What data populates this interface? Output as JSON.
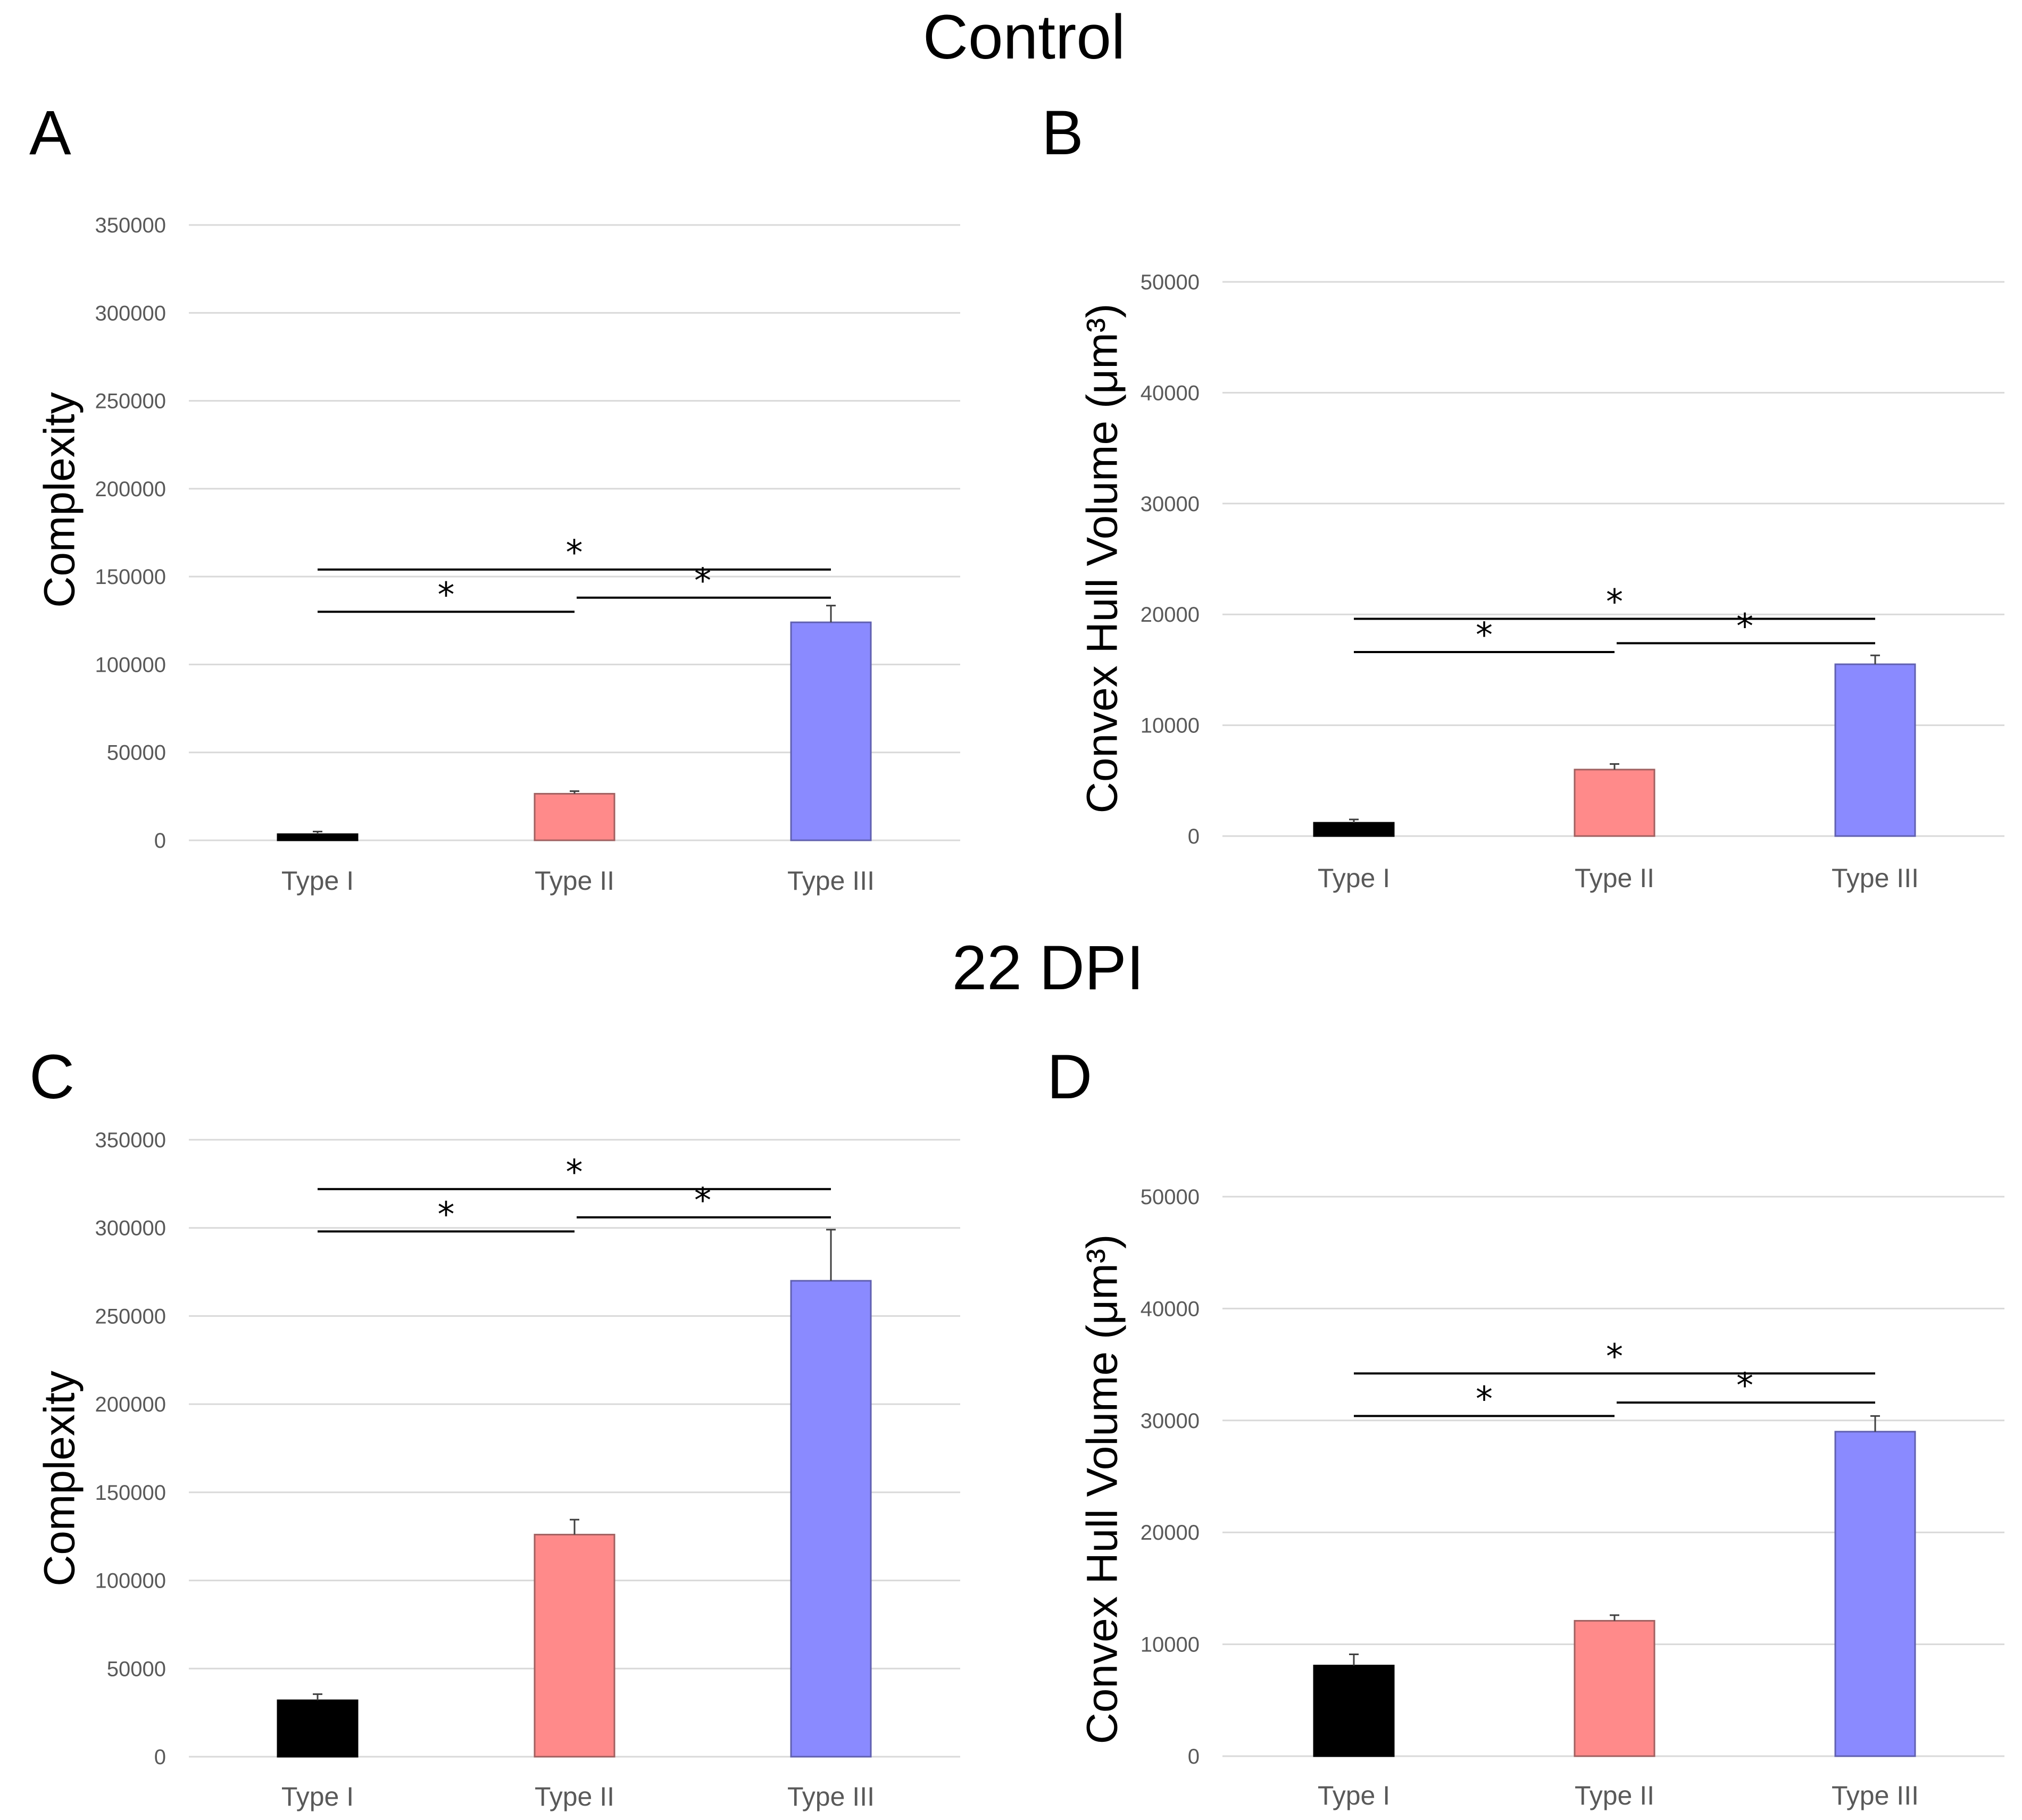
{
  "headings": {
    "top": "Control",
    "bottom": "22 DPI"
  },
  "colors": {
    "type_i": "#000000",
    "type_ii": "#ff8a8a",
    "type_iii": "#8a8aff",
    "grid": "#d9d9d9",
    "axis_text": "#595959"
  },
  "chart_data": [
    {
      "panel": "A",
      "type": "bar",
      "title": "",
      "xlabel": "",
      "ylabel": "Complexity",
      "categories": [
        "Type I",
        "Type II",
        "Type III"
      ],
      "values": [
        3500,
        26500,
        124000
      ],
      "errors": [
        1500,
        1500,
        9500
      ],
      "ylim": [
        0,
        350000
      ],
      "yticks": [
        0,
        50000,
        100000,
        150000,
        200000,
        250000,
        300000,
        350000
      ],
      "ytick_labels": [
        "0",
        "50000",
        "100000",
        "150000",
        "200000",
        "250000",
        "300000",
        "350000"
      ],
      "grid": true,
      "significance": [
        {
          "from": 0,
          "to": 2,
          "y": 154000,
          "label": "*"
        },
        {
          "from": 0,
          "to": 1,
          "y": 130000,
          "label": "*"
        },
        {
          "from": 1,
          "to": 2,
          "y": 138000,
          "label": "*"
        }
      ]
    },
    {
      "panel": "B",
      "type": "bar",
      "title": "",
      "xlabel": "",
      "ylabel": "Convex Hull Volume (μm³)",
      "categories": [
        "Type I",
        "Type II",
        "Type III"
      ],
      "values": [
        1200,
        6000,
        15500
      ],
      "errors": [
        300,
        500,
        800
      ],
      "ylim": [
        0,
        50000
      ],
      "yticks": [
        0,
        10000,
        20000,
        30000,
        40000,
        50000
      ],
      "ytick_labels": [
        "0",
        "10000",
        "20000",
        "30000",
        "40000",
        "50000"
      ],
      "grid": true,
      "significance": [
        {
          "from": 0,
          "to": 2,
          "y": 19600,
          "label": "*"
        },
        {
          "from": 0,
          "to": 1,
          "y": 16600,
          "label": "*"
        },
        {
          "from": 1,
          "to": 2,
          "y": 17400,
          "label": "*"
        }
      ]
    },
    {
      "panel": "C",
      "type": "bar",
      "title": "",
      "xlabel": "",
      "ylabel": "Complexity",
      "categories": [
        "Type I",
        "Type II",
        "Type III"
      ],
      "values": [
        32000,
        126000,
        270000
      ],
      "errors": [
        3500,
        8500,
        29000
      ],
      "ylim": [
        0,
        350000
      ],
      "yticks": [
        0,
        50000,
        100000,
        150000,
        200000,
        250000,
        300000,
        350000
      ],
      "ytick_labels": [
        "0",
        "50000",
        "100000",
        "150000",
        "200000",
        "250000",
        "300000",
        "350000"
      ],
      "grid": true,
      "significance": [
        {
          "from": 0,
          "to": 2,
          "y": 322000,
          "label": "*"
        },
        {
          "from": 0,
          "to": 1,
          "y": 298000,
          "label": "*"
        },
        {
          "from": 1,
          "to": 2,
          "y": 306000,
          "label": "*"
        }
      ]
    },
    {
      "panel": "D",
      "type": "bar",
      "title": "",
      "xlabel": "",
      "ylabel": "Convex Hull Volume (μm³)",
      "categories": [
        "Type I",
        "Type II",
        "Type III"
      ],
      "values": [
        8100,
        12100,
        29000
      ],
      "errors": [
        1000,
        500,
        1400
      ],
      "ylim": [
        0,
        50000
      ],
      "yticks": [
        0,
        10000,
        20000,
        30000,
        40000,
        50000
      ],
      "ytick_labels": [
        "0",
        "10000",
        "20000",
        "30000",
        "40000",
        "50000"
      ],
      "grid": true,
      "significance": [
        {
          "from": 0,
          "to": 2,
          "y": 34200,
          "label": "*"
        },
        {
          "from": 0,
          "to": 1,
          "y": 30400,
          "label": "*"
        },
        {
          "from": 1,
          "to": 2,
          "y": 31600,
          "label": "*"
        }
      ]
    }
  ]
}
